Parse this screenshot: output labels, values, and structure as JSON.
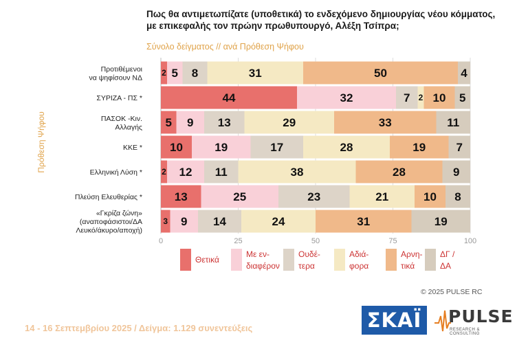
{
  "title": "Πως θα αντιμετωπίζατε (υποθετικά) το ενδεχόμενο δημιουργίας νέου κόμματος, με επικεφαλής τον πρώην πρωθυπουργό, Αλέξη Τσίπρα;",
  "subtitle": "Σύνολο δείγματος // ανά Πρόθεση Ψήφου",
  "y_axis_title": "Πρόθεση Ψήφου",
  "copyright": "© 2025 PULSE RC",
  "footer": "14 - 16 Σεπτεμβρίου 2025  /  Δείγμα:  1.129 συνεντεύξεις",
  "logos": {
    "skai": "ΣΚΑΪ",
    "pulse": "PULSE",
    "pulse_sub": "RESEARCH & CONSULTING"
  },
  "colors": [
    "#e8706c",
    "#f9d0d8",
    "#ddd4c8",
    "#f5e9c3",
    "#f0b98a",
    "#d6ccbd"
  ],
  "chart_data": {
    "type": "bar",
    "orientation": "horizontal",
    "stacked": true,
    "xlim": [
      0,
      100
    ],
    "xticks": [
      0,
      25,
      50,
      75,
      100
    ],
    "categories": [
      [
        "Προτιθέμενοι",
        "να ψηφίσουν ΝΔ"
      ],
      [
        "ΣΥΡΙΖΑ - ΠΣ *"
      ],
      [
        "ΠΑΣΟΚ -Κιν.",
        "Αλλαγής"
      ],
      [
        "ΚΚΕ *"
      ],
      [
        "Ελληνική Λύση *"
      ],
      [
        "Πλεύση Ελευθερίας *"
      ],
      [
        "«Γκρίζα ζώνη»",
        "(αναποφάσιστοι/ΔΑ",
        "Λευκό/άκυρο/αποχή)"
      ]
    ],
    "series": [
      {
        "name": "Θετικά",
        "values": [
          2,
          44,
          5,
          10,
          2,
          13,
          3
        ]
      },
      {
        "name": "Με ενδιαφέρον",
        "values": [
          5,
          32,
          9,
          19,
          12,
          25,
          9
        ]
      },
      {
        "name": "Ουδέτερα",
        "values": [
          8,
          7,
          13,
          17,
          11,
          23,
          14
        ]
      },
      {
        "name": "Αδιάφορα",
        "values": [
          31,
          2,
          29,
          28,
          38,
          21,
          24
        ]
      },
      {
        "name": "Αρνητικά",
        "values": [
          50,
          10,
          33,
          19,
          28,
          10,
          31
        ]
      },
      {
        "name": "ΔΓ / ΔΑ",
        "values": [
          4,
          5,
          11,
          7,
          9,
          8,
          19
        ]
      }
    ],
    "legend": [
      [
        "Θετικά"
      ],
      [
        "Με εν-",
        "διαφέρον"
      ],
      [
        "Ουδέ-",
        "τερα"
      ],
      [
        "Αδιά-",
        "φορα"
      ],
      [
        "Αρνη-",
        "τικά"
      ],
      [
        "ΔΓ /",
        "ΔΑ"
      ]
    ],
    "legend_position": "bottom"
  }
}
